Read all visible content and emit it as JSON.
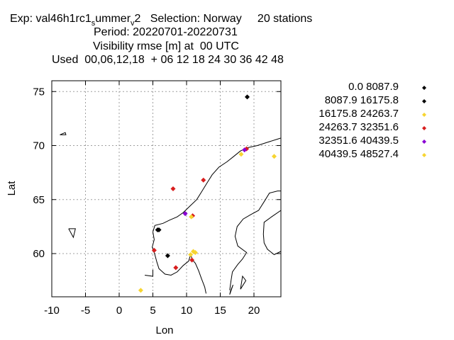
{
  "header": {
    "line1": {
      "prefix": "Exp: val46h1rc1",
      "sub1": "s",
      "mid": "ummer",
      "sub2": "v",
      "suffix": "2   Selection: Norway     20 stations"
    },
    "line2": "Period: 20220701-20220731",
    "line3": "Visibility rmse [m] at  00 UTC",
    "line4": "Used  00,06,12,18  + 06 12 18 24 30 36 42 48"
  },
  "chart_data": {
    "type": "scatter",
    "xlabel": "Lon",
    "ylabel": "Lat",
    "xlim": [
      -10,
      24
    ],
    "ylim": [
      56,
      76
    ],
    "xticks": [
      -10,
      -5,
      0,
      5,
      10,
      15,
      20
    ],
    "yticks": [
      60,
      65,
      70,
      75
    ],
    "grid": true,
    "legend_position": "right",
    "series": [
      {
        "name": "0.0 8087.9",
        "color": "#000000",
        "points": [
          [
            19.0,
            74.5
          ]
        ]
      },
      {
        "name": "8087.9 16175.8",
        "color": "#000000",
        "points": [
          [
            5.7,
            62.2
          ],
          [
            5.9,
            62.2
          ],
          [
            7.2,
            59.8
          ]
        ]
      },
      {
        "name": "16175.8 24263.7",
        "color": "#f7d531",
        "points": [
          [
            23.0,
            69.0
          ],
          [
            18.1,
            69.2
          ],
          [
            11.0,
            60.2
          ],
          [
            11.3,
            60.1
          ],
          [
            10.6,
            59.9
          ],
          [
            3.2,
            56.6
          ]
        ]
      },
      {
        "name": "24263.7 32351.6",
        "color": "#d81e1e",
        "points": [
          [
            8.0,
            66.0
          ],
          [
            12.5,
            66.8
          ],
          [
            18.9,
            69.7
          ],
          [
            10.9,
            63.5
          ],
          [
            5.2,
            60.3
          ],
          [
            8.4,
            58.7
          ],
          [
            10.8,
            59.4
          ]
        ]
      },
      {
        "name": "32351.6 40439.5",
        "color": "#8a00d4",
        "points": [
          [
            9.8,
            63.7
          ],
          [
            18.6,
            69.6
          ]
        ]
      },
      {
        "name": "40439.5 48527.4",
        "color": "#f7d531",
        "points": [
          [
            10.7,
            63.4
          ]
        ]
      }
    ]
  }
}
